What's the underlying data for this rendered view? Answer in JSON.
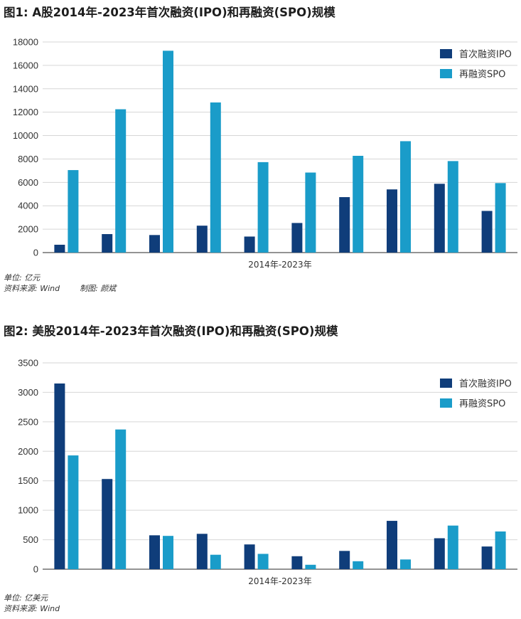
{
  "colors": {
    "ipo": "#0f3d7a",
    "spo": "#1a9cc9",
    "grid": "#d6d6d6",
    "axis": "#555555"
  },
  "figures": [
    {
      "title": "图1: A股2014年-2023年首次融资(IPO)和再融资(SPO)规模",
      "unit_note": "单位: 亿元",
      "source_note": "资料来源: Wind",
      "credit_note": "制图: 颜斌"
    },
    {
      "title": "图2: 美股2014年-2023年首次融资(IPO)和再融资(SPO)规模",
      "unit_note": "单位: 亿美元",
      "source_note": "资料来源: Wind",
      "credit_note": ""
    }
  ],
  "chart_data": [
    {
      "type": "bar",
      "xlabel": "2014年-2023年",
      "ylabel": "",
      "categories": [
        "",
        "",
        "",
        "",
        "",
        "",
        "",
        "",
        "",
        ""
      ],
      "ylim": [
        0,
        18000
      ],
      "yticks": [
        0,
        2000,
        4000,
        6000,
        8000,
        10000,
        12000,
        14000,
        16000,
        18000
      ],
      "grid": true,
      "legend_position": "top-right",
      "series": [
        {
          "name": "首次融资IPO",
          "color_key": "ipo",
          "values": [
            670,
            1580,
            1500,
            2300,
            1370,
            2530,
            4740,
            5400,
            5880,
            3560
          ]
        },
        {
          "name": "再融资SPO",
          "color_key": "spo",
          "values": [
            7050,
            12250,
            17250,
            12830,
            7730,
            6840,
            8270,
            9520,
            7820,
            5940
          ]
        }
      ]
    },
    {
      "type": "bar",
      "xlabel": "2014年-2023年",
      "ylabel": "",
      "categories": [
        "",
        "",
        "",
        "",
        "",
        "",
        "",
        "",
        "",
        ""
      ],
      "ylim": [
        0,
        3500
      ],
      "yticks": [
        0,
        500,
        1000,
        1500,
        2000,
        2500,
        3000,
        3500
      ],
      "grid": true,
      "legend_position": "top-right",
      "series": [
        {
          "name": "首次融资IPO",
          "color_key": "ipo",
          "values": [
            3150,
            1530,
            575,
            600,
            420,
            220,
            310,
            820,
            525,
            385
          ]
        },
        {
          "name": "再融资SPO",
          "color_key": "spo",
          "values": [
            1930,
            2370,
            565,
            245,
            260,
            75,
            135,
            165,
            740,
            640
          ]
        }
      ]
    }
  ]
}
